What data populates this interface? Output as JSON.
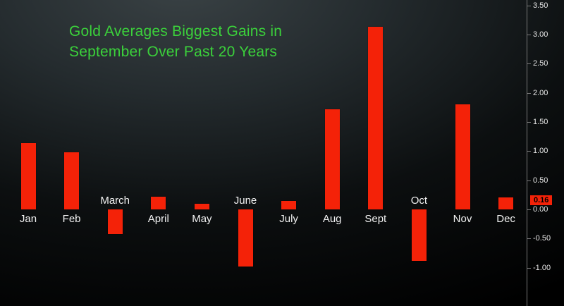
{
  "title": {
    "line1": "Gold Averages Biggest Gains in",
    "line2": "September Over Past 20 Years"
  },
  "colors": {
    "bar": "#f42208",
    "title_green": "#3bd13b",
    "axis_text": "#e8e8e8",
    "last_value_bg": "#f42208",
    "last_value_text": "#000000",
    "background": "#000000"
  },
  "chart_data": {
    "type": "bar",
    "title": "Gold Averages Biggest Gains in September Over Past 20 Years",
    "categories": [
      "Jan",
      "Feb",
      "March",
      "April",
      "May",
      "June",
      "July",
      "Aug",
      "Sept",
      "Oct",
      "Nov",
      "Dec"
    ],
    "values": [
      1.14,
      0.98,
      -0.42,
      0.22,
      0.1,
      -0.98,
      0.15,
      1.72,
      3.13,
      -0.88,
      1.8,
      0.2
    ],
    "xlabel": "",
    "ylabel": "",
    "ylim": [
      -1.0,
      3.5
    ],
    "ytick_labels": [
      "3.50",
      "3.00",
      "2.50",
      "2.00",
      "1.50",
      "1.00",
      "0.50",
      "0.00",
      "-0.50",
      "-1.00"
    ],
    "ytick_values": [
      3.5,
      3.0,
      2.5,
      2.0,
      1.5,
      1.0,
      0.5,
      0.0,
      -0.5,
      -1.0
    ],
    "last_value": {
      "label": "0.16",
      "value": 0.16
    },
    "grid": false,
    "legend": "none",
    "axis_side": "right"
  }
}
